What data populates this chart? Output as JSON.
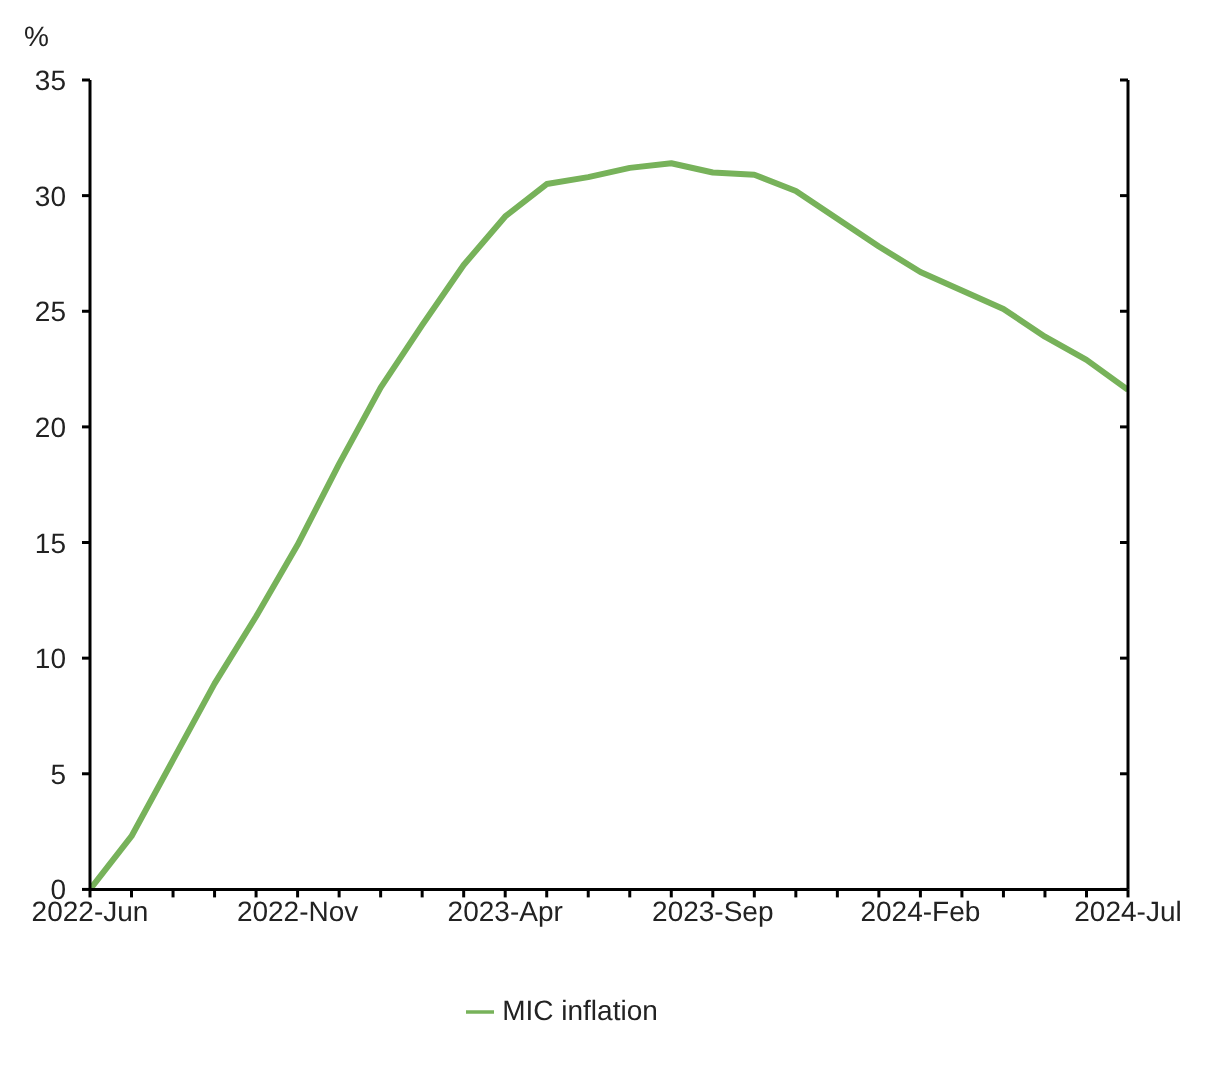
{
  "chart_data": {
    "type": "line",
    "ylabel": "%",
    "categories": [
      "2022-Jun",
      null,
      null,
      null,
      null,
      "2022-Nov",
      null,
      null,
      null,
      null,
      "2023-Apr",
      null,
      null,
      null,
      null,
      "2023-Sep",
      null,
      null,
      null,
      null,
      "2024-Feb",
      null,
      null,
      null,
      null,
      "2024-Jul"
    ],
    "series": [
      {
        "name": "MIC inflation",
        "color": "#77b25a",
        "values": [
          0,
          2.3,
          5.6,
          8.9,
          11.8,
          14.9,
          18.4,
          21.7,
          24.4,
          27.0,
          29.1,
          30.5,
          30.8,
          31.2,
          31.4,
          31.0,
          30.9,
          30.2,
          29.0,
          27.8,
          26.7,
          25.9,
          25.1,
          23.9,
          22.9,
          21.6
        ]
      }
    ],
    "ylim": [
      0,
      35
    ],
    "yticks": [
      0,
      5,
      10,
      15,
      20,
      25,
      30,
      35
    ],
    "legend": "bottom",
    "marker": "none",
    "line_style": "solid"
  }
}
